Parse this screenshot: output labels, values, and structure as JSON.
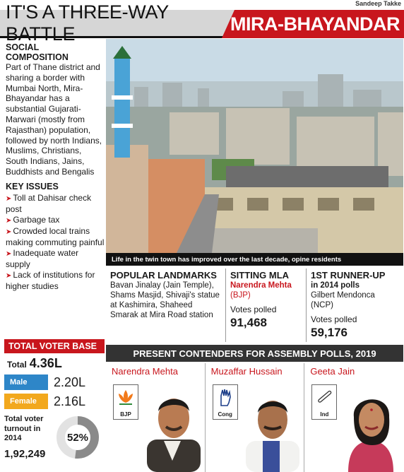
{
  "byline": "Sandeep Takke",
  "banner": {
    "left_title": "IT'S A THREE-WAY BATTLE",
    "right_title": "MIRA-BHAYANDAR",
    "accent_color": "#c8161d"
  },
  "social": {
    "title_line1": "SOCIAL",
    "title_line2": "COMPOSITION",
    "text": "Part of Thane district and sharing a border with Mumbai North, Mira-Bhayandar has a substantial Gujarati-Marwari (mostly from Rajasthan) population, followed by north Indians, Muslims, Christians, South Indians, Jains, Buddhists and Bengalis"
  },
  "key_issues": {
    "title": "KEY ISSUES",
    "items": [
      "Toll at Dahisar check post",
      "Garbage tax",
      "Crowded local trains making commuting painful",
      "Inadequate water supply",
      "Lack of institutions for higher studies"
    ]
  },
  "voter_base": {
    "title": "TOTAL VOTER BASE",
    "total_label": "Total",
    "total_value": "4.36L",
    "male_label": "Male",
    "male_value": "2.20L",
    "male_color": "#2e86c8",
    "female_label": "Female",
    "female_value": "2.16L",
    "female_color": "#f2a81d",
    "turnout_label": "Total voter turnout in 2014",
    "turnout_votes": "1,92,249",
    "turnout_percent_label": "52%",
    "turnout_fraction": 0.52
  },
  "photo": {
    "caption": "Life in the twin town has improved over the last decade, opine residents"
  },
  "landmarks": {
    "title": "POPULAR LANDMARKS",
    "text": "Bavan Jinalay (Jain Temple), Shams Masjid, Shivaji's statue at Kashimira, Shaheed Smarak at Mira Road station"
  },
  "sitting_mla": {
    "title": "SITTING MLA",
    "name": "Narendra Mehta",
    "party": "(BJP)",
    "votes_label": "Votes polled",
    "votes": "91,468"
  },
  "runner_up": {
    "title": "1ST RUNNER-UP",
    "subtitle": "in 2014 polls",
    "name": "Gilbert Mendonca (NCP)",
    "votes_label": "Votes polled",
    "votes": "59,176"
  },
  "contenders": {
    "title": "PRESENT CONTENDERS FOR ASSEMBLY POLLS, 2019",
    "candidates": [
      {
        "name": "Narendra Mehta",
        "party": "BJP",
        "symbol_icon": "lotus-icon"
      },
      {
        "name": "Muzaffar Hussain",
        "party": "Cong",
        "symbol_icon": "hand-icon"
      },
      {
        "name": "Geeta Jain",
        "party": "Ind",
        "symbol_icon": "flute-icon"
      }
    ]
  }
}
